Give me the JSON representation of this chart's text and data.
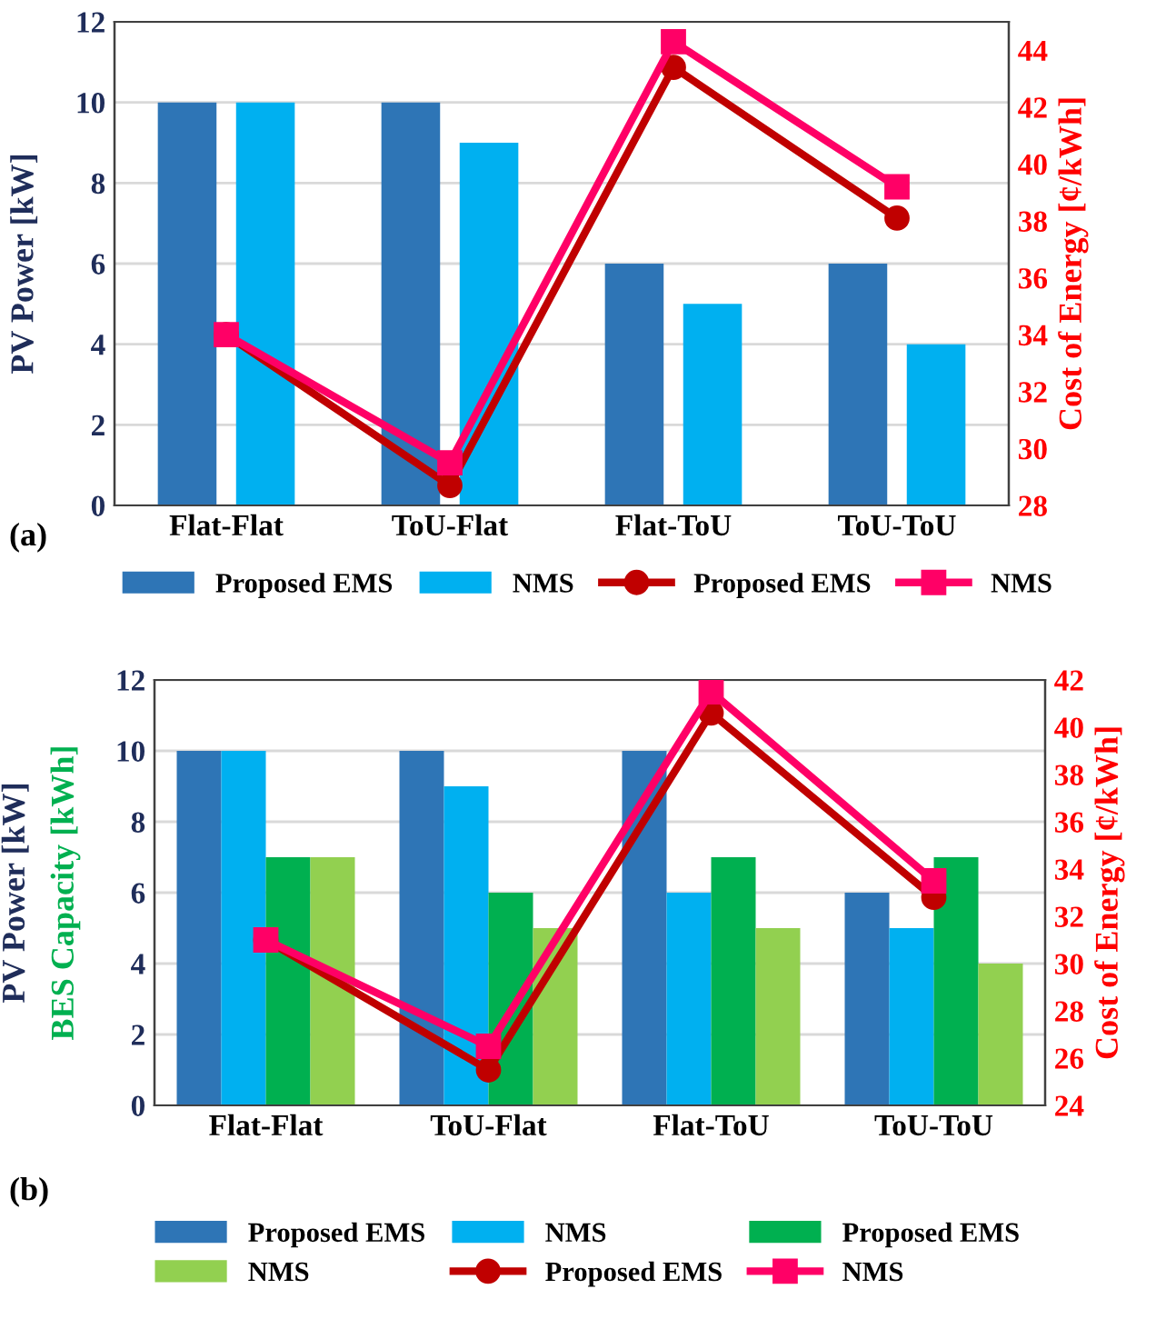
{
  "chart_data": [
    {
      "type": "bar",
      "categories": [
        "Flat-Flat",
        "ToU-Flat",
        "Flat-ToU",
        "ToU-ToU"
      ],
      "ylabel": "PV Power [kW]",
      "y2label": "Cost of Energy [¢/kWh]",
      "ylim": [
        0,
        12
      ],
      "yticks": [
        0,
        2,
        4,
        6,
        8,
        10,
        12
      ],
      "y2lim": [
        28,
        45
      ],
      "y2ticks": [
        28,
        30,
        32,
        34,
        36,
        38,
        40,
        42,
        44
      ],
      "grid": "y",
      "legend": "bottom",
      "annotations": [
        "(a)"
      ],
      "series": [
        {
          "name": "Proposed EMS",
          "color": "#2e75b6",
          "values": [
            10,
            10,
            6,
            6
          ]
        },
        {
          "name": "NMS",
          "color": "#00b0f0",
          "values": [
            10,
            9,
            5,
            4
          ]
        },
        {
          "name": "Proposed EMS",
          "type": "line",
          "axis": "y2",
          "marker": "circle",
          "color": "#c00000",
          "values": [
            34,
            28.7,
            43.4,
            38.1
          ]
        },
        {
          "name": "NMS",
          "type": "line",
          "axis": "y2",
          "marker": "square",
          "color": "#ff0066",
          "values": [
            34,
            29.5,
            44.3,
            39.2
          ]
        }
      ]
    },
    {
      "type": "bar",
      "categories": [
        "Flat-Flat",
        "ToU-Flat",
        "Flat-ToU",
        "ToU-ToU"
      ],
      "ylabel": "PV Power [kW]\nBES Capacity [kWh]",
      "y2label": "Cost of Energy [¢/kWh]",
      "ylim": [
        0,
        12
      ],
      "yticks": [
        0,
        2,
        4,
        6,
        8,
        10,
        12
      ],
      "y2lim": [
        24,
        42
      ],
      "y2ticks": [
        24,
        26,
        28,
        30,
        32,
        34,
        36,
        38,
        40,
        42
      ],
      "grid": "y",
      "legend": "bottom",
      "annotations": [
        "(b)"
      ],
      "series": [
        {
          "name": "Proposed EMS",
          "color": "#2e75b6",
          "values": [
            10,
            10,
            10,
            6
          ]
        },
        {
          "name": "NMS",
          "color": "#00b0f0",
          "values": [
            10,
            9,
            6,
            5
          ]
        },
        {
          "name": "Proposed EMS",
          "color": "#00b050",
          "values": [
            7,
            6,
            7,
            7
          ]
        },
        {
          "name": "NMS",
          "color": "#92d050",
          "values": [
            7,
            5,
            5,
            4
          ]
        },
        {
          "name": "Proposed EMS",
          "type": "line",
          "axis": "y2",
          "marker": "circle",
          "color": "#c00000",
          "values": [
            31,
            25.5,
            40.6,
            32.8
          ]
        },
        {
          "name": "NMS",
          "type": "line",
          "axis": "y2",
          "marker": "square",
          "color": "#ff0066",
          "values": [
            31,
            26.5,
            41.5,
            33.5
          ]
        }
      ]
    }
  ]
}
